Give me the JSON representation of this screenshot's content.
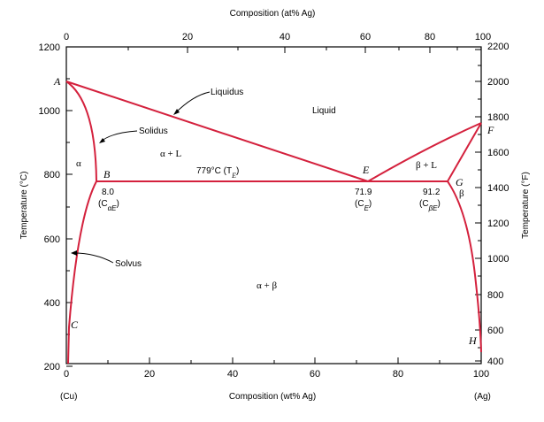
{
  "top_axis": {
    "title": "Composition (at% Ag)",
    "ticks": [
      "0",
      "20",
      "40",
      "60",
      "80",
      "100"
    ]
  },
  "bottom_axis": {
    "title": "Composition (wt% Ag)",
    "ticks": [
      "0",
      "20",
      "40",
      "60",
      "80",
      "100"
    ],
    "left_end": "(Cu)",
    "right_end": "(Ag)"
  },
  "left_axis": {
    "title": "Temperature (°C)",
    "ticks": [
      "200",
      "400",
      "600",
      "800",
      "1000",
      "1200"
    ]
  },
  "right_axis": {
    "title": "Temperature (°F)",
    "ticks": [
      "400",
      "600",
      "800",
      "1000",
      "1200",
      "1400",
      "1600",
      "1800",
      "2000",
      "2200"
    ]
  },
  "points": {
    "A": "A",
    "B": "B",
    "C": "C",
    "E": "E",
    "F": "F",
    "G": "G",
    "H": "H"
  },
  "regions": {
    "liquid": "Liquid",
    "alpha": "α",
    "alpha_l": "α + L",
    "beta_l": "β + L",
    "beta": "β",
    "alpha_beta": "α + β"
  },
  "annotations": {
    "liquidus": "Liquidus",
    "solidus": "Solidus",
    "solvus": "Solvus",
    "eutectic_temp": "779°C (T",
    "eutectic_temp_sub": "E",
    "b_comp": "8.0",
    "b_sym": "(C",
    "b_sym_sub": "αE",
    "e_comp": "71.9",
    "e_sym": "(C",
    "e_sym_sub": "E",
    "g_comp": "91.2",
    "g_sym": "(C",
    "g_sym_sub": "βE"
  },
  "colors": {
    "phase_lines": "#d4213d",
    "frame": "#000000"
  }
}
